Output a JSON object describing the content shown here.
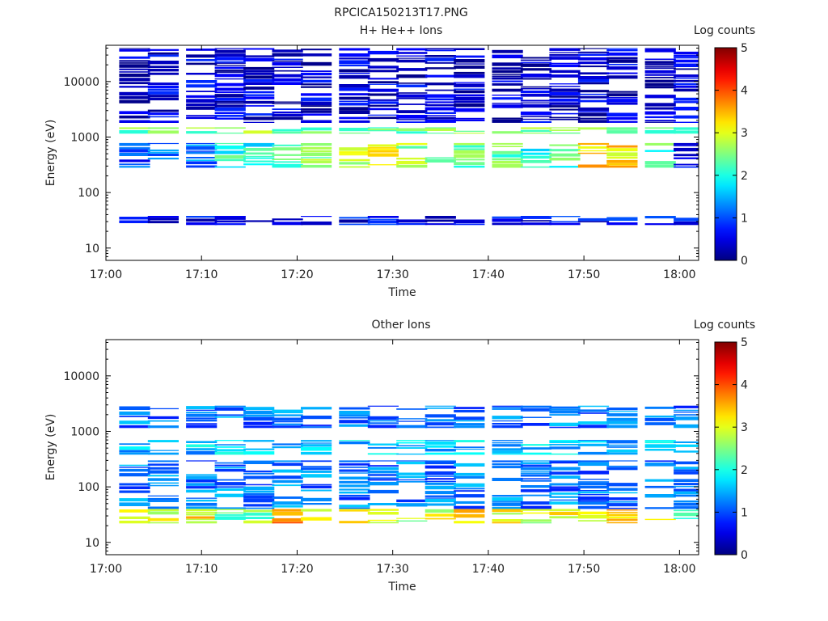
{
  "figure_title": "RPCICA150213T17.PNG",
  "chart_data": [
    {
      "type": "heatmap",
      "title": "H+ He++ Ions",
      "xlabel": "Time",
      "ylabel": "Energy (eV)",
      "x_ticks": [
        "17:00",
        "17:10",
        "17:20",
        "17:30",
        "17:40",
        "17:50",
        "18:00"
      ],
      "x_range": [
        "17:00",
        "18:02"
      ],
      "y_scale": "log",
      "y_ticks": [
        10,
        100,
        1000,
        10000
      ],
      "y_tick_labels": [
        "10",
        "100",
        "1000",
        "10000"
      ],
      "ylim": [
        6,
        45000
      ],
      "colorbar": {
        "label": "Log counts",
        "range": [
          0,
          5
        ],
        "ticks": [
          "0",
          "1",
          "2",
          "3",
          "4",
          "5"
        ],
        "colormap": "jet"
      },
      "time_bins": [
        "17:03",
        "17:06",
        "17:10",
        "17:13",
        "17:16",
        "17:19",
        "17:22",
        "17:26",
        "17:29",
        "17:32",
        "17:35",
        "17:38",
        "17:42",
        "17:45",
        "17:48",
        "17:51",
        "17:54",
        "17:58",
        "18:01"
      ],
      "bands": [
        {
          "label": "high-energy scattered",
          "ev_lo": 1800,
          "ev_hi": 40000,
          "level": 0.4
        },
        {
          "label": "main line ~1.3 keV",
          "ev_lo": 1150,
          "ev_hi": 1500,
          "level": 2.5
        },
        {
          "label": "mid population ~400-700 eV",
          "ev_lo": 280,
          "ev_hi": 780,
          "level": [
            0.9,
            1.2,
            1.3,
            2.1,
            2.0,
            2.2,
            2.6,
            2.7,
            3.3,
            2.7,
            2.4,
            2.3,
            2.4,
            1.9,
            2.2,
            3.4,
            3.2,
            2.2,
            0.6
          ]
        },
        {
          "label": "low-energy line ~30 eV",
          "ev_lo": 26,
          "ev_hi": 38,
          "level": 0.6
        }
      ]
    },
    {
      "type": "heatmap",
      "title": "Other Ions",
      "xlabel": "Time",
      "ylabel": "Energy (eV)",
      "x_ticks": [
        "17:00",
        "17:10",
        "17:20",
        "17:30",
        "17:40",
        "17:50",
        "18:00"
      ],
      "x_range": [
        "17:00",
        "18:02"
      ],
      "y_scale": "log",
      "y_ticks": [
        10,
        100,
        1000,
        10000
      ],
      "y_tick_labels": [
        "10",
        "100",
        "1000",
        "10000"
      ],
      "ylim": [
        6,
        45000
      ],
      "colorbar": {
        "label": "Log counts",
        "range": [
          0,
          5
        ],
        "ticks": [
          "0",
          "1",
          "2",
          "3",
          "4",
          "5"
        ],
        "colormap": "jet"
      },
      "time_bins": [
        "17:03",
        "17:06",
        "17:10",
        "17:13",
        "17:16",
        "17:19",
        "17:22",
        "17:26",
        "17:29",
        "17:32",
        "17:35",
        "17:38",
        "17:42",
        "17:45",
        "17:48",
        "17:51",
        "17:54",
        "17:58",
        "18:01"
      ],
      "bands": [
        {
          "label": "upper line ~1.2-2.8 keV",
          "ev_lo": 1150,
          "ev_hi": 2900,
          "level": 1.2
        },
        {
          "label": "mid population ~400-700 eV",
          "ev_lo": 380,
          "ev_hi": 700,
          "level": 1.6
        },
        {
          "label": "broad low-energy ~40-300 eV",
          "ev_lo": 40,
          "ev_hi": 300,
          "level": 1.2
        },
        {
          "label": "dense band ~22-40 eV",
          "ev_lo": 22,
          "ev_hi": 40,
          "level": [
            2.8,
            3.0,
            3.2,
            2.4,
            2.5,
            3.6,
            3.0,
            3.1,
            2.9,
            2.6,
            3.0,
            3.3,
            3.1,
            2.9,
            3.0,
            3.2,
            3.5,
            3.0,
            2.4
          ]
        }
      ]
    }
  ]
}
